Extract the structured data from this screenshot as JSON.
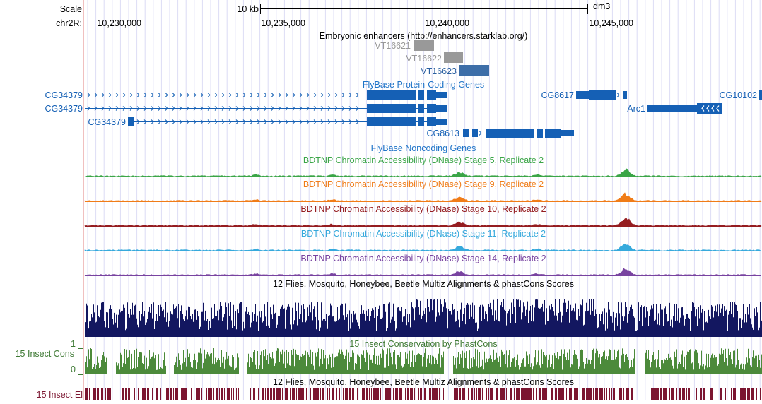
{
  "assembly": "dm3",
  "scale": {
    "label": "Scale",
    "bar_label": "10 kb"
  },
  "ruler": {
    "chrom_label": "chr2R:",
    "ticks": [
      "10,230,000",
      "10,235,000",
      "10,240,000",
      "10,245,000"
    ]
  },
  "enhancers": {
    "title": "Embryonic enhancers (http://enhancers.starklab.org/)",
    "items": [
      {
        "name": "VT16621",
        "color": "#999999"
      },
      {
        "name": "VT16622",
        "color": "#999999"
      },
      {
        "name": "VT16623",
        "color": "#3d6ea8"
      }
    ]
  },
  "genes": {
    "protein_coding_title": "FlyBase Protein-Coding Genes",
    "noncoding_title": "FlyBase Noncoding Genes",
    "color": "#1560b5",
    "title_color": "#1f74c8",
    "names": [
      "CG34379",
      "CG34379",
      "CG34379",
      "CG8613",
      "CG8617",
      "Arc1",
      "CG10102"
    ]
  },
  "dnase_tracks": [
    {
      "title": "BDTNP Chromatin Accessibility (DNase) Stage 5, Replicate 2",
      "color": "#3aa547"
    },
    {
      "title": "BDTNP Chromatin Accessibility (DNase) Stage 9, Replicate 2",
      "color": "#f07c18"
    },
    {
      "title": "BDTNP Chromatin Accessibility (DNase) Stage 10, Replicate 2",
      "color": "#951c20"
    },
    {
      "title": "BDTNP Chromatin Accessibility (DNase) Stage 11, Replicate 2",
      "color": "#36a9dc"
    },
    {
      "title": "BDTNP Chromatin Accessibility (DNase) Stage 14, Replicate 2",
      "color": "#7843a0"
    }
  ],
  "multiz": {
    "title": "12 Flies, Mosquito, Honeybee, Beetle Multiz Alignments & phastCons Scores",
    "color": "#131760"
  },
  "phastcons": {
    "title": "15 Insect Conservation by PhastCons",
    "side_label": "15 Insect Cons",
    "axis_max": "1",
    "axis_min": "0",
    "color": "#4c8a3b",
    "title_color": "#3f7a35"
  },
  "elements": {
    "title": "12 Flies, Mosquito, Honeybee, Beetle Multiz Alignments & phastCons Scores",
    "side_label": "15 Insect El",
    "color": "#7b1530"
  }
}
